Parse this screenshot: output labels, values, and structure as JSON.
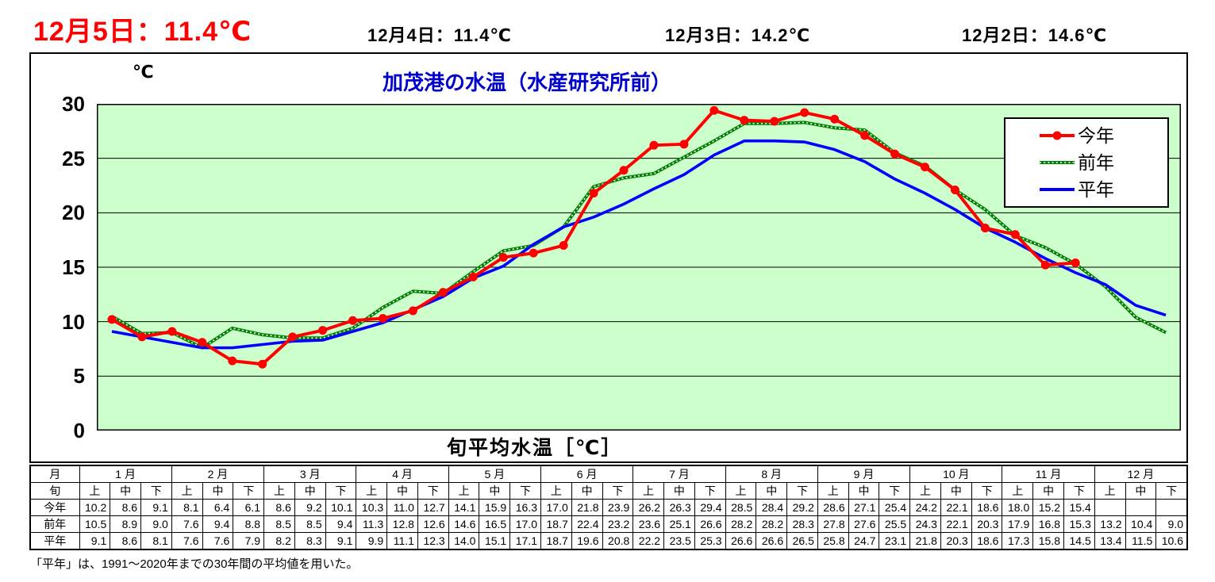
{
  "header": {
    "today": "12月5日：11.4℃",
    "recent": [
      "12月4日：11.4℃",
      "12月3日：14.2℃",
      "12月2日：14.6℃"
    ]
  },
  "chart": {
    "title": "加茂港の水温（水産研究所前）",
    "y_unit": "℃",
    "x_label": "旬平均水温［℃］"
  },
  "chart_data": {
    "type": "line",
    "title": "加茂港の水温（水産研究所前）",
    "xlabel": "旬平均水温［℃］",
    "ylabel": "℃",
    "ylim": [
      0,
      30
    ],
    "y_ticks": [
      0,
      5,
      10,
      15,
      20,
      25,
      30
    ],
    "grid": true,
    "plot_bg": "#ccffcc",
    "legend_position": "top-right",
    "categories": [
      "1月上",
      "1月中",
      "1月下",
      "2月上",
      "2月中",
      "2月下",
      "3月上",
      "3月中",
      "3月下",
      "4月上",
      "4月中",
      "4月下",
      "5月上",
      "5月中",
      "5月下",
      "6月上",
      "6月中",
      "6月下",
      "7月上",
      "7月中",
      "7月下",
      "8月上",
      "8月中",
      "8月下",
      "9月上",
      "9月中",
      "9月下",
      "10月上",
      "10月中",
      "10月下",
      "11月上",
      "11月中",
      "11月下",
      "12月上",
      "12月中",
      "12月下"
    ],
    "series": [
      {
        "name": "今年",
        "color": "#ff0000",
        "style": "solid-marker",
        "values": [
          10.2,
          8.6,
          9.1,
          8.1,
          6.4,
          6.1,
          8.6,
          9.2,
          10.1,
          10.3,
          11.0,
          12.7,
          14.1,
          15.9,
          16.3,
          17.0,
          21.8,
          23.9,
          26.2,
          26.3,
          29.4,
          28.5,
          28.4,
          29.2,
          28.6,
          27.1,
          25.4,
          24.2,
          22.1,
          18.6,
          18.0,
          15.2,
          15.4
        ]
      },
      {
        "name": "前年",
        "color": "#008000",
        "style": "dotted",
        "values": [
          10.5,
          8.9,
          9.0,
          7.6,
          9.4,
          8.8,
          8.5,
          8.5,
          9.4,
          11.3,
          12.8,
          12.6,
          14.6,
          16.5,
          17.0,
          18.7,
          22.4,
          23.2,
          23.6,
          25.1,
          26.6,
          28.2,
          28.2,
          28.3,
          27.8,
          27.6,
          25.5,
          24.3,
          22.1,
          20.3,
          17.9,
          16.8,
          15.3,
          13.2,
          10.4,
          9.0
        ]
      },
      {
        "name": "平年",
        "color": "#0000ff",
        "style": "solid",
        "values": [
          9.1,
          8.6,
          8.1,
          7.6,
          7.6,
          7.9,
          8.2,
          8.3,
          9.1,
          9.9,
          11.1,
          12.3,
          14.0,
          15.1,
          17.1,
          18.7,
          19.6,
          20.8,
          22.2,
          23.5,
          25.3,
          26.6,
          26.6,
          26.5,
          25.8,
          24.7,
          23.1,
          21.8,
          20.3,
          18.6,
          17.3,
          15.8,
          14.5,
          13.4,
          11.5,
          10.6
        ]
      }
    ]
  },
  "table": {
    "corner_month": "月",
    "corner_jun": "旬",
    "months": [
      "1 月",
      "2 月",
      "3 月",
      "4 月",
      "5 月",
      "6 月",
      "7 月",
      "8 月",
      "9 月",
      "10 月",
      "11 月",
      "12 月"
    ],
    "jun_labels": [
      "上",
      "中",
      "下"
    ]
  },
  "footer": {
    "note": "「平年」は、1991～2020年までの30年間の平均値を用いた。"
  }
}
